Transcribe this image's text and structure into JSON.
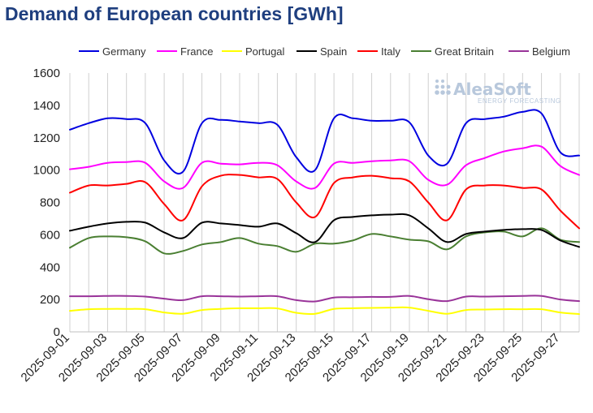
{
  "title": "Demand of European countries [GWh]",
  "watermark": {
    "brand": "AleaSoft",
    "tagline": "ENERGY FORECASTING"
  },
  "chart_data": {
    "type": "line",
    "title": "Demand of European countries [GWh]",
    "xlabel": "",
    "ylabel": "",
    "ylim": [
      0,
      1600
    ],
    "yticks": [
      0,
      200,
      400,
      600,
      800,
      1000,
      1200,
      1400,
      1600
    ],
    "grid": "vertical",
    "legend_position": "top",
    "x": [
      "2025-09-01",
      "2025-09-02",
      "2025-09-03",
      "2025-09-04",
      "2025-09-05",
      "2025-09-06",
      "2025-09-07",
      "2025-09-08",
      "2025-09-09",
      "2025-09-10",
      "2025-09-11",
      "2025-09-12",
      "2025-09-13",
      "2025-09-14",
      "2025-09-15",
      "2025-09-16",
      "2025-09-17",
      "2025-09-18",
      "2025-09-19",
      "2025-09-20",
      "2025-09-21",
      "2025-09-22",
      "2025-09-23",
      "2025-09-24",
      "2025-09-25",
      "2025-09-26",
      "2025-09-27",
      "2025-09-28"
    ],
    "xtick_labels": [
      "2025-09-01",
      "2025-09-03",
      "2025-09-05",
      "2025-09-07",
      "2025-09-09",
      "2025-09-11",
      "2025-09-13",
      "2025-09-15",
      "2025-09-17",
      "2025-09-19",
      "2025-09-21",
      "2025-09-23",
      "2025-09-25",
      "2025-09-27"
    ],
    "series": [
      {
        "name": "Germany",
        "color": "#0000e0",
        "values": [
          1250,
          1290,
          1320,
          1315,
          1290,
          1060,
          990,
          1290,
          1310,
          1300,
          1290,
          1280,
          1080,
          1000,
          1320,
          1320,
          1305,
          1305,
          1295,
          1090,
          1040,
          1290,
          1315,
          1330,
          1360,
          1350,
          1110,
          1090
        ]
      },
      {
        "name": "France",
        "color": "#ff00ff",
        "values": [
          1005,
          1020,
          1045,
          1050,
          1045,
          930,
          890,
          1045,
          1040,
          1035,
          1045,
          1030,
          930,
          890,
          1040,
          1045,
          1055,
          1060,
          1055,
          940,
          910,
          1030,
          1075,
          1115,
          1135,
          1145,
          1025,
          970
        ]
      },
      {
        "name": "Portugal",
        "color": "#ffff00",
        "values": [
          130,
          140,
          142,
          142,
          140,
          120,
          112,
          135,
          142,
          146,
          146,
          145,
          118,
          112,
          142,
          146,
          148,
          150,
          150,
          130,
          112,
          135,
          138,
          140,
          140,
          140,
          120,
          110
        ]
      },
      {
        "name": "Spain",
        "color": "#000000",
        "values": [
          625,
          650,
          670,
          680,
          675,
          615,
          580,
          675,
          670,
          660,
          650,
          670,
          610,
          555,
          690,
          710,
          720,
          725,
          720,
          640,
          555,
          605,
          620,
          630,
          635,
          630,
          565,
          525
        ]
      },
      {
        "name": "Italy",
        "color": "#ff0000",
        "values": [
          860,
          905,
          905,
          915,
          925,
          790,
          690,
          900,
          965,
          970,
          955,
          945,
          800,
          710,
          920,
          955,
          965,
          950,
          930,
          800,
          690,
          880,
          905,
          905,
          890,
          880,
          750,
          640
        ]
      },
      {
        "name": "Great Britain",
        "color": "#4a7f32",
        "values": [
          520,
          580,
          590,
          585,
          560,
          485,
          500,
          540,
          555,
          580,
          545,
          530,
          495,
          545,
          545,
          565,
          605,
          590,
          570,
          560,
          510,
          590,
          615,
          620,
          590,
          640,
          570,
          555
        ]
      },
      {
        "name": "Belgium",
        "color": "#993399",
        "values": [
          220,
          220,
          222,
          222,
          218,
          205,
          196,
          220,
          220,
          218,
          220,
          220,
          196,
          188,
          212,
          214,
          216,
          216,
          222,
          202,
          190,
          218,
          218,
          220,
          222,
          222,
          200,
          190
        ]
      }
    ]
  }
}
